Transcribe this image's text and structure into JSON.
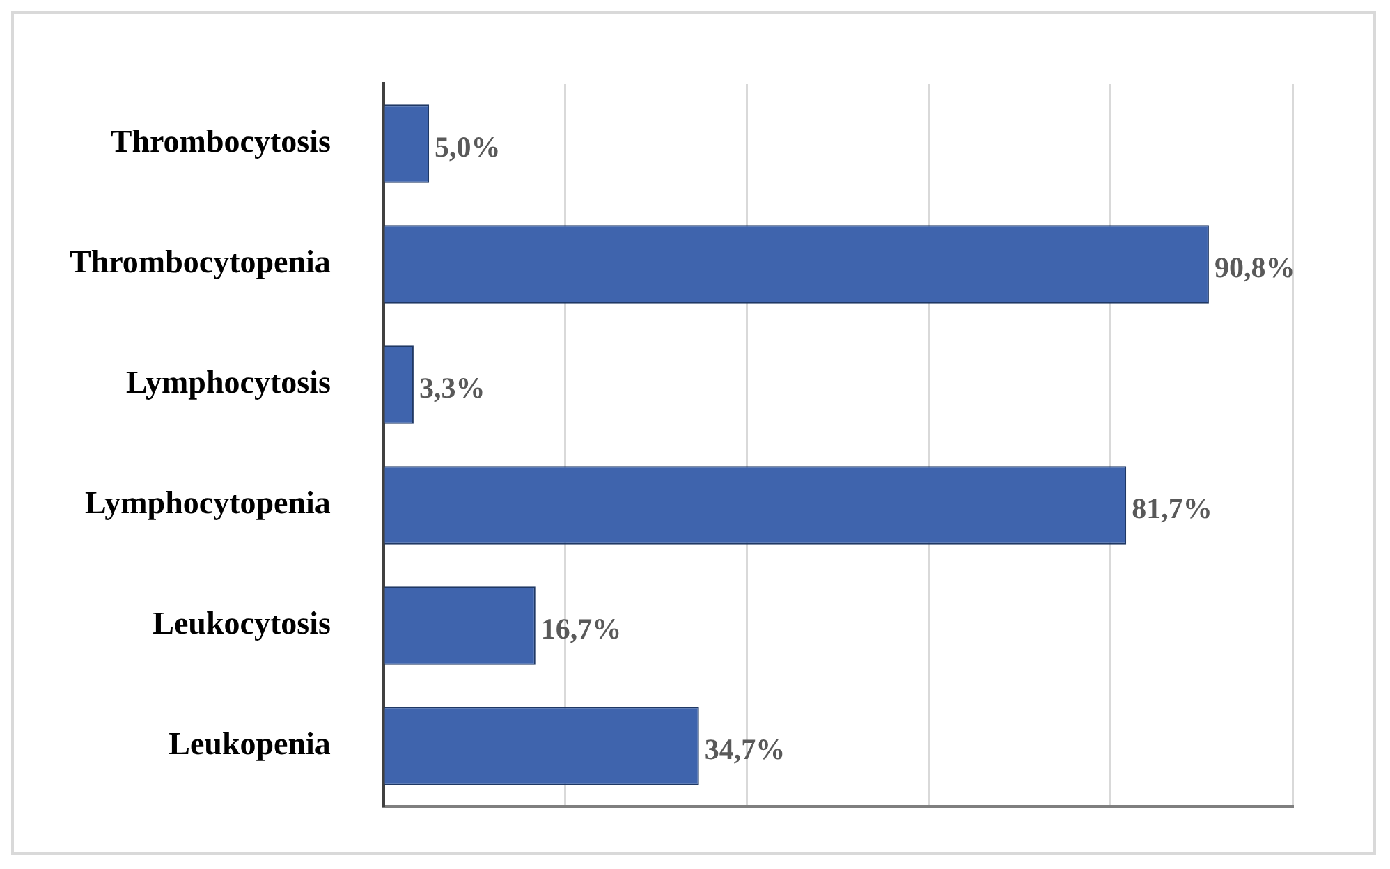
{
  "chart_data": {
    "type": "bar",
    "orientation": "horizontal",
    "categories": [
      "Thrombocytosis",
      "Thrombocytopenia",
      "Lymphocytosis",
      "Lymphocytopenia",
      "Leukocytosis",
      "Leukopenia"
    ],
    "values": [
      5.0,
      90.8,
      3.3,
      81.7,
      16.7,
      34.7
    ],
    "value_labels": [
      "5,0%",
      "90,8%",
      "3,3%",
      "81,7%",
      "16,7%",
      "34,7%"
    ],
    "color": "#3f64ad",
    "xlim": [
      0,
      100
    ],
    "xticks": [
      {
        "value": 0,
        "label": null
      },
      {
        "value": 20,
        "label": null
      },
      {
        "value": 40,
        "label": null
      },
      {
        "value": 60,
        "label": null
      },
      {
        "value": 80,
        "label": null
      },
      {
        "value": 100,
        "label": null
      }
    ],
    "grid": "x",
    "tick_labels": "y",
    "legend": false
  }
}
